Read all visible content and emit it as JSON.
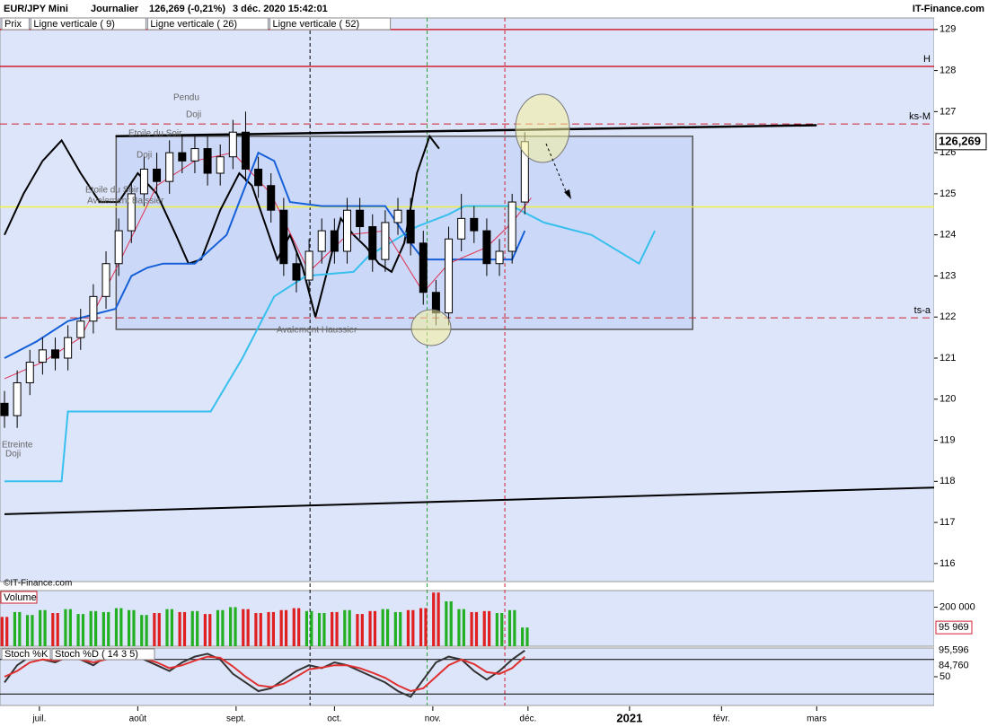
{
  "header": {
    "symbol": "EUR/JPY Mini",
    "period": "Journalier",
    "quote": "126,269 (-0,21%)",
    "datetime": "3 déc. 2020 15:42:01",
    "site": "IT-Finance.com"
  },
  "legend": [
    {
      "label": "Prix",
      "color": "#000000"
    },
    {
      "label": "Ligne verticale ( 9)",
      "color": "#d02030"
    },
    {
      "label": "Ligne verticale ( 26)",
      "color": "#2a9d3a"
    },
    {
      "label": "Ligne verticale ( 52)",
      "color": "#000000"
    }
  ],
  "watermark": "©IT-Finance.com",
  "annotations": [
    "Pendu",
    "Doji",
    "Etoile du Soir",
    "Doji",
    "Etoile du Soir",
    "Avalement Baissier",
    "Avalement Haussier",
    "Etreinte",
    "Doji"
  ],
  "chart_data": [
    {
      "type": "candlestick",
      "name": "Prix",
      "up_color": "#ffffff",
      "down_color": "#000000",
      "x": [
        0,
        4,
        8,
        12,
        16,
        20,
        24,
        28,
        32,
        36,
        40,
        44,
        48,
        52,
        56,
        60,
        64,
        68,
        72,
        76,
        80,
        84,
        88,
        92,
        96,
        100,
        104,
        108,
        112,
        116,
        120,
        124,
        128,
        132,
        136,
        140,
        144,
        148,
        152,
        156,
        160,
        164
      ],
      "open": [
        119.9,
        119.6,
        120.4,
        120.9,
        121.2,
        121.0,
        121.5,
        121.9,
        122.5,
        123.3,
        124.1,
        125.0,
        125.6,
        125.3,
        126.0,
        125.8,
        126.1,
        125.5,
        125.9,
        126.5,
        125.6,
        125.2,
        124.6,
        123.3,
        122.9,
        123.6,
        124.1,
        123.6,
        124.6,
        124.2,
        123.4,
        124.3,
        124.6,
        123.8,
        122.6,
        122.1,
        123.9,
        124.4,
        124.1,
        123.3,
        123.6,
        124.8
      ],
      "high": [
        120.2,
        120.7,
        121.2,
        121.5,
        121.5,
        121.8,
        122.2,
        122.8,
        123.6,
        124.4,
        125.3,
        125.9,
        126.0,
        126.3,
        126.4,
        126.4,
        126.4,
        126.2,
        126.8,
        127.0,
        125.9,
        125.5,
        124.9,
        123.6,
        123.9,
        124.4,
        124.4,
        124.9,
        124.9,
        124.5,
        124.6,
        124.9,
        124.9,
        124.1,
        122.9,
        124.2,
        125.0,
        124.7,
        124.4,
        123.9,
        125.0,
        126.5
      ],
      "low": [
        119.3,
        119.3,
        120.1,
        120.6,
        120.7,
        120.7,
        121.2,
        121.6,
        122.2,
        123.0,
        123.8,
        124.7,
        125.0,
        125.0,
        125.5,
        125.5,
        125.2,
        125.2,
        125.6,
        125.3,
        124.9,
        124.3,
        123.0,
        122.6,
        122.6,
        123.3,
        123.3,
        123.3,
        123.9,
        123.1,
        123.1,
        124.0,
        123.5,
        122.3,
        121.8,
        121.8,
        123.6,
        123.8,
        123.0,
        123.0,
        123.3,
        124.5
      ],
      "close": [
        119.6,
        120.4,
        120.9,
        121.2,
        121.0,
        121.5,
        121.9,
        122.5,
        123.3,
        124.1,
        125.0,
        125.6,
        125.3,
        126.0,
        125.8,
        126.1,
        125.5,
        125.9,
        126.5,
        125.6,
        125.2,
        124.6,
        123.3,
        122.9,
        123.6,
        124.1,
        123.6,
        124.6,
        124.2,
        123.4,
        124.3,
        124.6,
        123.8,
        122.6,
        122.1,
        123.9,
        124.4,
        124.1,
        123.3,
        123.6,
        124.8,
        126.269
      ],
      "last_price": {
        "value": 126.269,
        "label": "126,269"
      },
      "xlim": [
        0,
        293
      ],
      "ylim": [
        115.56,
        129.28
      ],
      "xticks": [
        {
          "value": 11,
          "label": "juil."
        },
        {
          "value": 42,
          "label": "août"
        },
        {
          "value": 73,
          "label": "sept."
        },
        {
          "value": 104,
          "label": "oct."
        },
        {
          "value": 135,
          "label": "nov."
        },
        {
          "value": 165,
          "label": "déc."
        },
        {
          "value": 197,
          "label": "2021"
        },
        {
          "value": 226,
          "label": "févr."
        },
        {
          "value": 256,
          "label": "mars"
        }
      ],
      "yticks": [
        116,
        117,
        118,
        119,
        120,
        121,
        122,
        123,
        124,
        125,
        126,
        127,
        128,
        129
      ],
      "hlines": [
        {
          "value": 129,
          "color": "#d02030",
          "dash": false
        },
        {
          "value": 128.1,
          "color": "#d02030",
          "dash": false,
          "label": "H"
        },
        {
          "value": 126.7,
          "color": "#d02030",
          "dash": true,
          "label": "ks-M"
        },
        {
          "value": 124.68,
          "color": "#f0f040",
          "dash": false
        },
        {
          "value": 121.98,
          "color": "#d02030",
          "dash": true,
          "label": "ts-a"
        }
      ],
      "vlines": [
        {
          "x": 96.3,
          "color": "#000000"
        },
        {
          "x": 133.2,
          "color": "#2a9d3a"
        },
        {
          "x": 157.7,
          "color": "#d02030"
        }
      ],
      "box": {
        "x": [
          35.2,
          216.9
        ],
        "y": [
          121.7,
          126.4
        ]
      },
      "lines": [
        {
          "x": [
            0,
            6,
            12,
            18,
            24,
            30,
            36,
            42,
            48,
            54,
            58,
            62,
            68,
            74,
            78,
            82,
            86,
            90,
            94,
            98,
            102,
            106,
            110,
            114,
            118,
            122,
            126,
            130,
            134,
            137
          ],
          "y": [
            124,
            125,
            125.8,
            126.3,
            125.5,
            124.8,
            124.8,
            125.5,
            125.0,
            124.0,
            123.3,
            123.4,
            124.6,
            125.5,
            125.2,
            124.3,
            123.4,
            124.0,
            123.2,
            122.0,
            123.2,
            124.4,
            124.0,
            123.7,
            123.3,
            123.1,
            123.8,
            125.5,
            126.4,
            126.1
          ],
          "color": "#000000",
          "width": 2
        },
        {
          "x": [
            0,
            10,
            18,
            20,
            65,
            75,
            85,
            95,
            110,
            115,
            130,
            140,
            145,
            160,
            170,
            185,
            200,
            205
          ],
          "y": [
            118.0,
            118.0,
            118.0,
            119.7,
            119.7,
            121.0,
            122.5,
            123.0,
            123.1,
            123.5,
            124.2,
            124.5,
            124.7,
            124.7,
            124.3,
            124.0,
            123.3,
            124.1
          ],
          "color": "#37c0ee",
          "width": 2
        },
        {
          "x": [
            0,
            10,
            20,
            30,
            35,
            40,
            45,
            50,
            60,
            70,
            75,
            80,
            85,
            90,
            100,
            110,
            120,
            128,
            132,
            140,
            150,
            155,
            160,
            164
          ],
          "y": [
            121.0,
            121.4,
            121.9,
            122.1,
            122.2,
            123.0,
            123.2,
            123.3,
            123.3,
            124.0,
            125.0,
            126.0,
            125.8,
            124.8,
            124.7,
            124.7,
            124.7,
            123.8,
            123.4,
            123.4,
            123.4,
            123.4,
            123.4,
            124.1
          ],
          "color": "#1560d8",
          "width": 2
        },
        {
          "x": [
            0,
            12,
            24,
            36,
            48,
            60,
            72,
            84,
            96,
            108,
            120,
            132,
            140,
            152,
            160,
            166
          ],
          "y": [
            120.5,
            120.9,
            121.5,
            123.3,
            125.2,
            125.8,
            126.0,
            125.0,
            123.1,
            124.0,
            124.1,
            122.6,
            123.3,
            123.7,
            124.3,
            124.9
          ],
          "color": "#e03050",
          "width": 1
        },
        {
          "x": [
            35,
            256
          ],
          "y": [
            126.4,
            126.67
          ],
          "color": "#000000",
          "width": 2.5
        },
        {
          "x": [
            0,
            293
          ],
          "y": [
            117.2,
            117.85
          ],
          "color": "#000000",
          "width": 2
        }
      ]
    },
    {
      "type": "bar",
      "name": "Volume",
      "up_color": "#22b022",
      "down_color": "#e02020",
      "values": [
        150000,
        175000,
        160000,
        185000,
        170000,
        190000,
        165000,
        180000,
        175000,
        195000,
        185000,
        160000,
        170000,
        190000,
        175000,
        180000,
        165000,
        185000,
        200000,
        190000,
        170000,
        175000,
        185000,
        195000,
        180000,
        170000,
        175000,
        185000,
        165000,
        180000,
        190000,
        175000,
        185000,
        195000,
        275000,
        230000,
        190000,
        175000,
        180000,
        170000,
        185000,
        95969
      ],
      "last_label": "95 969",
      "ylim": [
        0,
        285000
      ],
      "yticks": [
        {
          "value": 200000,
          "label": "200 000"
        }
      ]
    },
    {
      "type": "line",
      "ylim": [
        0,
        100
      ],
      "yticks": [
        50
      ],
      "levels": [
        20,
        80
      ],
      "series": [
        {
          "name": "Stoch %K",
          "color": "#333333",
          "last_label": "95,596",
          "values": [
            40,
            70,
            85,
            80,
            75,
            85,
            80,
            70,
            85,
            90,
            85,
            80,
            70,
            60,
            75,
            85,
            90,
            80,
            55,
            40,
            25,
            30,
            45,
            60,
            70,
            65,
            75,
            70,
            60,
            50,
            40,
            25,
            15,
            45,
            75,
            85,
            80,
            60,
            45,
            60,
            80,
            95.596
          ]
        },
        {
          "name": "Stoch %D ( 14 3 5)",
          "color": "#e03030",
          "last_label": "84,760",
          "values": [
            50,
            60,
            75,
            80,
            78,
            82,
            80,
            75,
            80,
            87,
            86,
            82,
            75,
            65,
            70,
            78,
            85,
            83,
            68,
            50,
            35,
            32,
            38,
            50,
            63,
            66,
            70,
            70,
            65,
            57,
            48,
            35,
            25,
            30,
            50,
            70,
            80,
            72,
            58,
            55,
            65,
            84.76
          ]
        }
      ]
    }
  ]
}
